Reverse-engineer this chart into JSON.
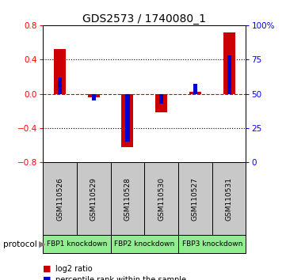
{
  "title": "GDS2573 / 1740080_1",
  "samples": [
    "GSM110526",
    "GSM110529",
    "GSM110528",
    "GSM110530",
    "GSM110527",
    "GSM110531"
  ],
  "log2_ratio": [
    0.52,
    -0.04,
    -0.62,
    -0.22,
    0.02,
    0.72
  ],
  "percentile_rank": [
    62,
    45,
    15,
    43,
    57,
    78
  ],
  "protocol_groups": [
    {
      "label": "FBP1 knockdown",
      "start": 0,
      "end": 1,
      "color": "#90ee90"
    },
    {
      "label": "FBP2 knockdown",
      "start": 2,
      "end": 3,
      "color": "#90ee90"
    },
    {
      "label": "FBP3 knockdown",
      "start": 4,
      "end": 5,
      "color": "#90ee90"
    }
  ],
  "ylim_left": [
    -0.8,
    0.8
  ],
  "ylim_right": [
    0,
    100
  ],
  "yticks_left": [
    -0.8,
    -0.4,
    0.0,
    0.4,
    0.8
  ],
  "yticks_right": [
    0,
    25,
    50,
    75,
    100
  ],
  "ytick_labels_right": [
    "0",
    "25",
    "50",
    "75",
    "100%"
  ],
  "bar_color_red": "#cc0000",
  "bar_color_blue": "#0000cc",
  "zero_line_color": "#cc0000",
  "dotted_line_color": "#000000",
  "dotted_lines_at": [
    -0.4,
    0.4
  ],
  "background_color": "#ffffff",
  "bar_width": 0.35,
  "blue_bar_width": 0.12,
  "sample_box_color": "#c8c8c8",
  "protocol_label": "protocol"
}
